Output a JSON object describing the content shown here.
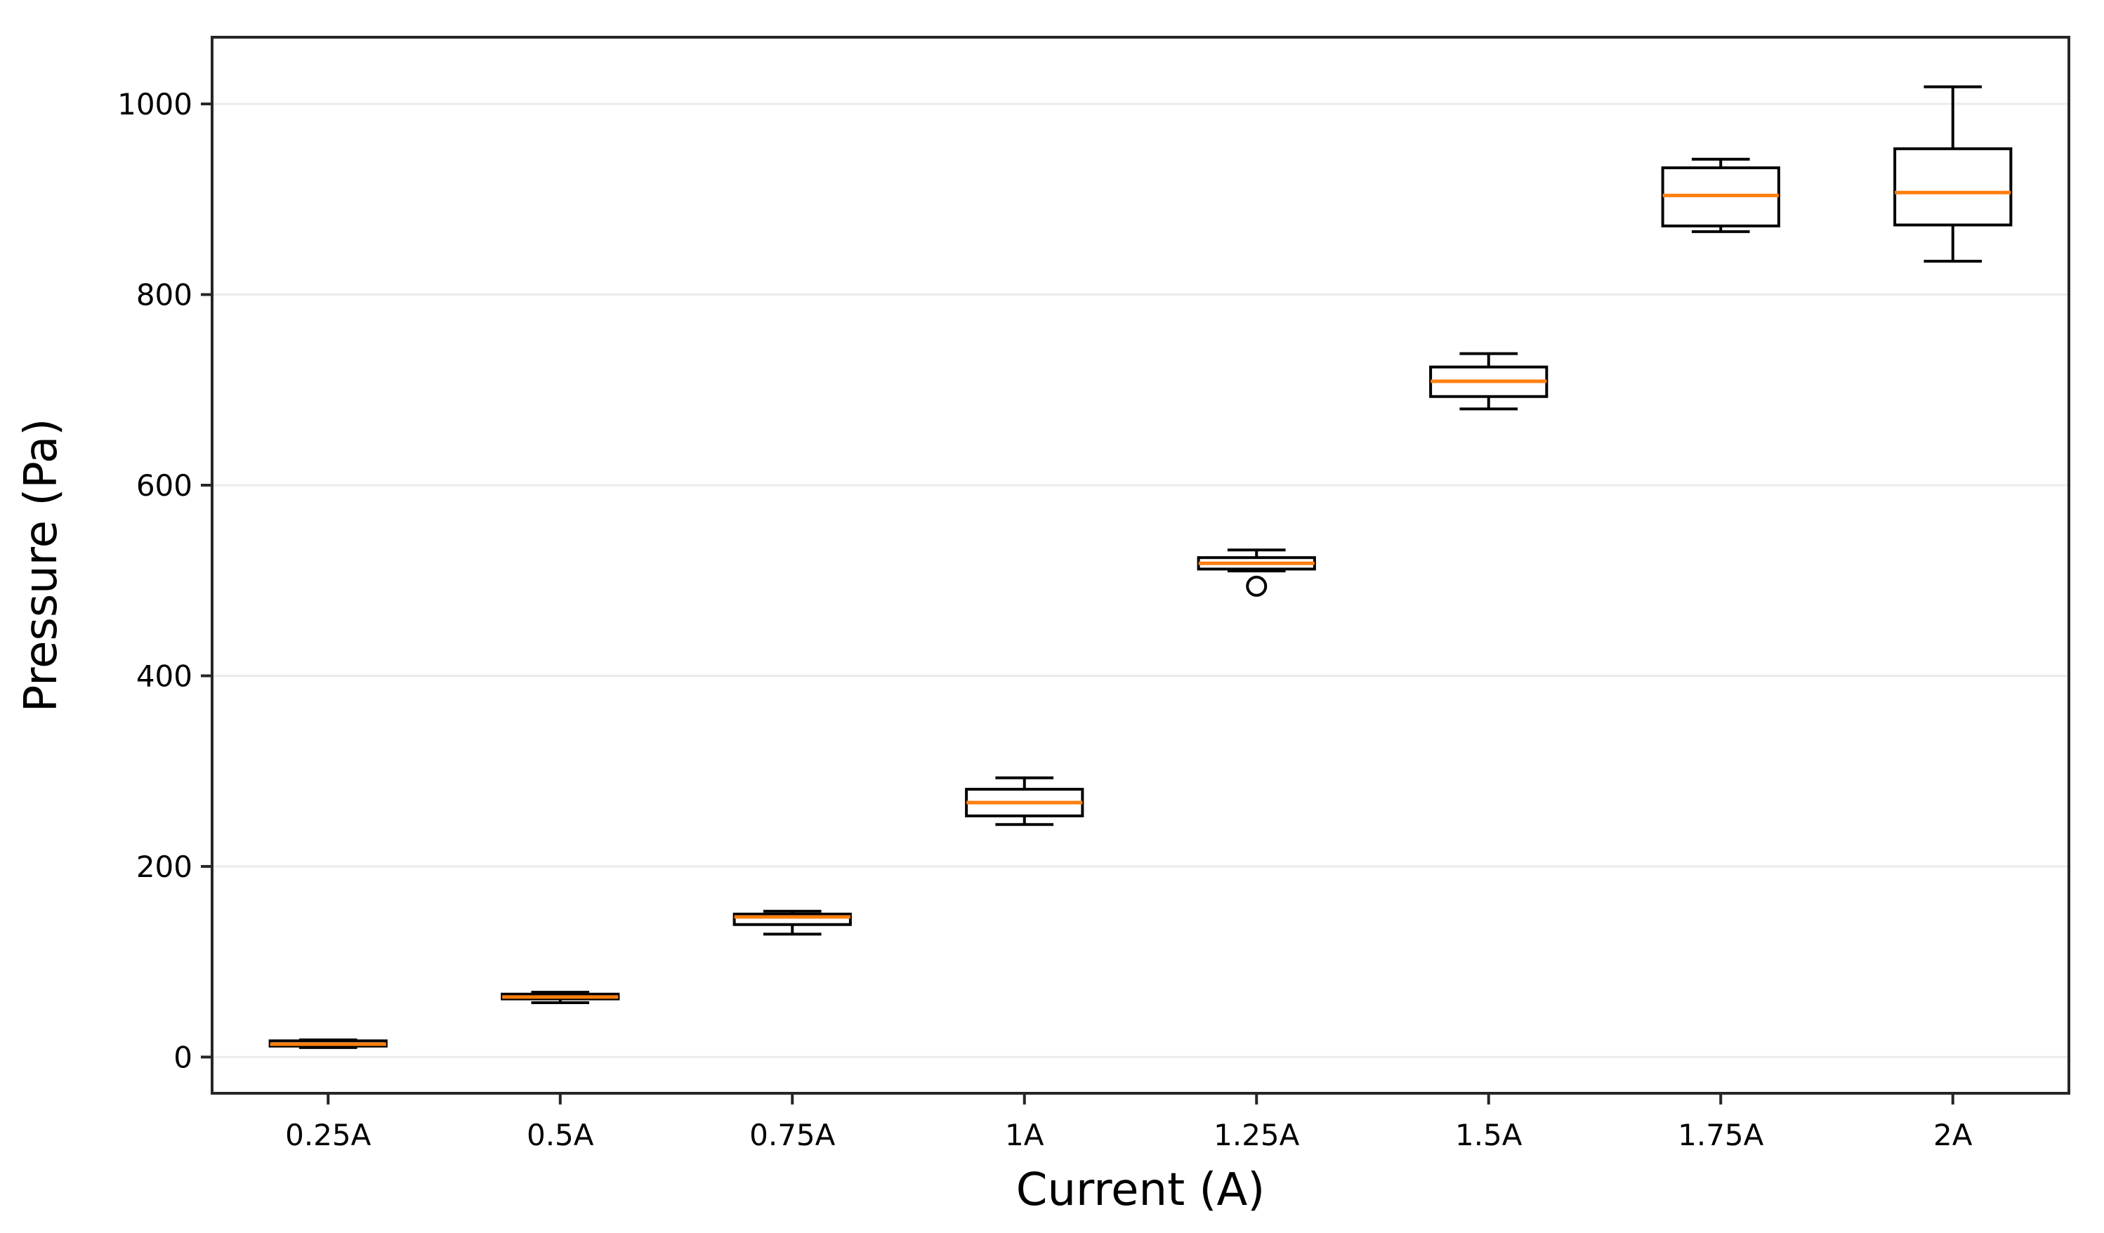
{
  "chart_data": {
    "type": "box",
    "title": "",
    "xlabel": "Current (A)",
    "ylabel": "Pressure (Pa)",
    "categories": [
      "0.25A",
      "0.5A",
      "0.75A",
      "1A",
      "1.25A",
      "1.5A",
      "1.75A",
      "2A"
    ],
    "yticks": [
      0,
      200,
      400,
      600,
      800,
      1000
    ],
    "ylim": [
      -38,
      1070
    ],
    "xlim": [
      0.5,
      8.5
    ],
    "grid": "horizontal-only",
    "legend": "none",
    "colors": {
      "median": "#ff7f0e",
      "box_line": "#000000",
      "spine": "#262626",
      "grid": "#ebebeb",
      "background": "#ffffff"
    },
    "boxes": [
      {
        "label": "0.25A",
        "whislo": 10,
        "q1": 11.5,
        "med": 13.5,
        "q3": 17,
        "whishi": 18,
        "fliers": []
      },
      {
        "label": "0.5A",
        "whislo": 57,
        "q1": 61,
        "med": 63,
        "q3": 66,
        "whishi": 68,
        "fliers": []
      },
      {
        "label": "0.75A",
        "whislo": 129,
        "q1": 139,
        "med": 147,
        "q3": 150,
        "whishi": 153,
        "fliers": []
      },
      {
        "label": "1A",
        "whislo": 244,
        "q1": 253,
        "med": 267,
        "q3": 281,
        "whishi": 293,
        "fliers": []
      },
      {
        "label": "1.25A",
        "whislo": 510,
        "q1": 512,
        "med": 518,
        "q3": 524,
        "whishi": 532,
        "fliers": [
          494
        ]
      },
      {
        "label": "1.5A",
        "whislo": 680,
        "q1": 693,
        "med": 709,
        "q3": 724,
        "whishi": 738,
        "fliers": []
      },
      {
        "label": "1.75A",
        "whislo": 866,
        "q1": 872,
        "med": 904,
        "q3": 933,
        "whishi": 942,
        "fliers": []
      },
      {
        "label": "2A",
        "whislo": 835,
        "q1": 873,
        "med": 907,
        "q3": 953,
        "whishi": 1018,
        "fliers": []
      }
    ]
  }
}
